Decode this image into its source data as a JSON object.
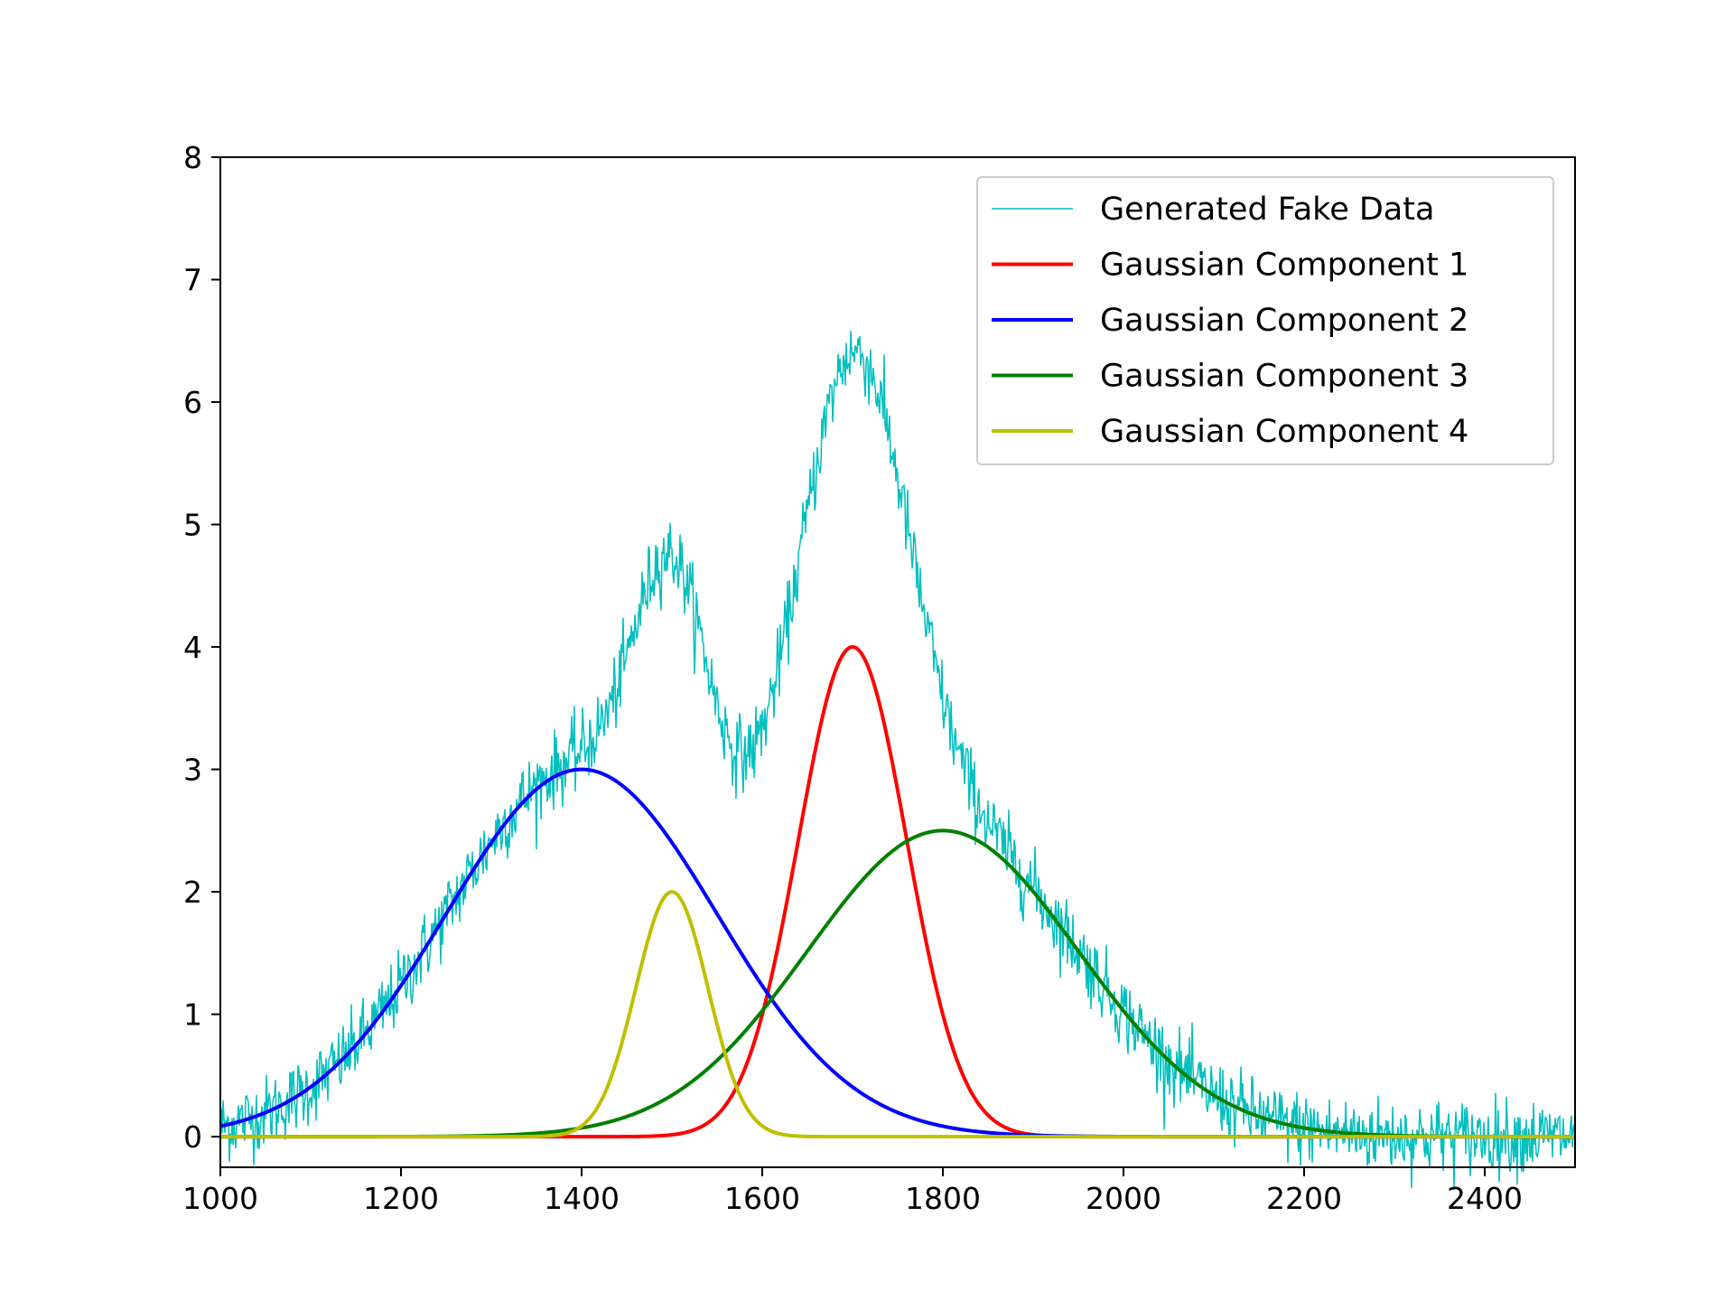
{
  "chart_data": {
    "type": "line",
    "title": "",
    "xlabel": "",
    "ylabel": "",
    "xlim": [
      1000,
      2500
    ],
    "ylim": [
      -0.25,
      8
    ],
    "xticks": [
      1000,
      1200,
      1400,
      1600,
      1800,
      2000,
      2200,
      2400
    ],
    "yticks": [
      0,
      1,
      2,
      3,
      4,
      5,
      6,
      7,
      8
    ],
    "grid": false,
    "legend_position": "top-right",
    "noisy_series": {
      "name": "Generated Fake Data",
      "color": "#00bfbf",
      "x_range": [
        1000,
        2500
      ],
      "noise_sd": 0.15
    },
    "series": [
      {
        "name": "Gaussian Component 1",
        "color": "#ff0000",
        "amplitude": 4,
        "center": 1700,
        "sigma": 60
      },
      {
        "name": "Gaussian Component 2",
        "color": "#0000ff",
        "amplitude": 3,
        "center": 1400,
        "sigma": 150
      },
      {
        "name": "Gaussian Component 3",
        "color": "#008000",
        "amplitude": 2.5,
        "center": 1800,
        "sigma": 150
      },
      {
        "name": "Gaussian Component 4",
        "color": "#bfbf00",
        "amplitude": 2,
        "center": 1500,
        "sigma": 40
      }
    ]
  }
}
